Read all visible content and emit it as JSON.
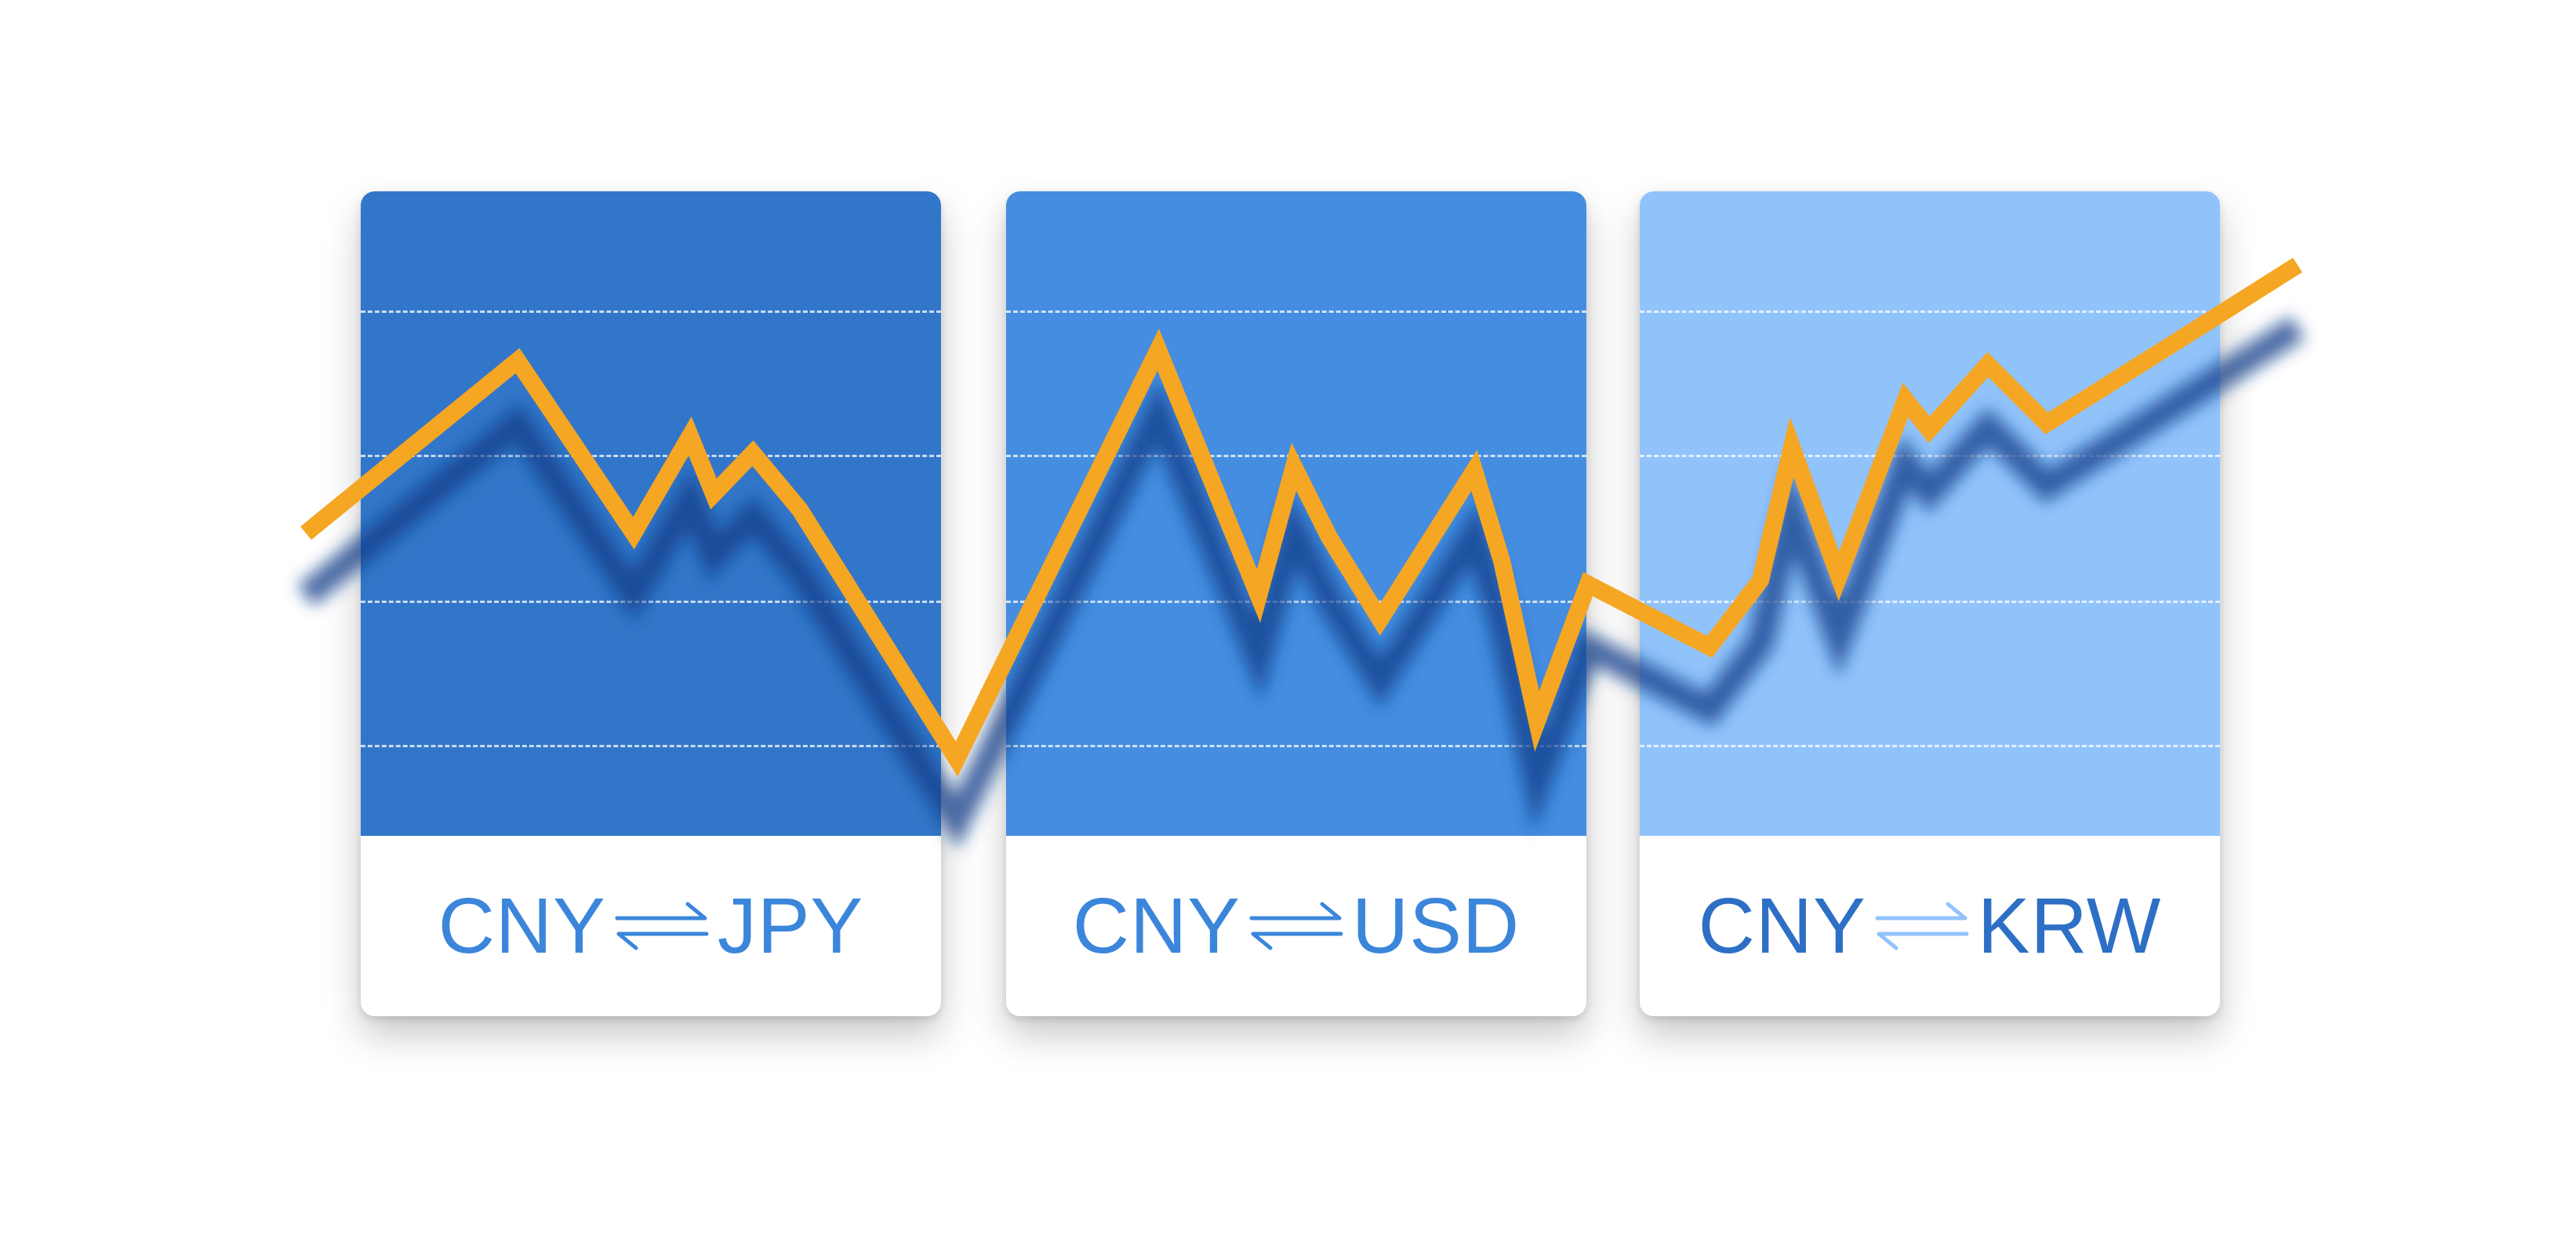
{
  "colors": {
    "card1_top": "#3276c9",
    "card2_top": "#448de0",
    "card3_top": "#91c3fb",
    "line": "#f5a623",
    "shadow": "#0d3d8a",
    "pair_text": "#3b86db",
    "pair_text_dark": "#2d6fc4"
  },
  "cards": [
    {
      "from": "CNY",
      "to": "JPY",
      "icon": "exchange-arrows-icon"
    },
    {
      "from": "CNY",
      "to": "USD",
      "icon": "exchange-arrows-icon"
    },
    {
      "from": "CNY",
      "to": "KRW",
      "icon": "exchange-arrows-icon"
    }
  ],
  "line_icon": "rising-trend-line"
}
